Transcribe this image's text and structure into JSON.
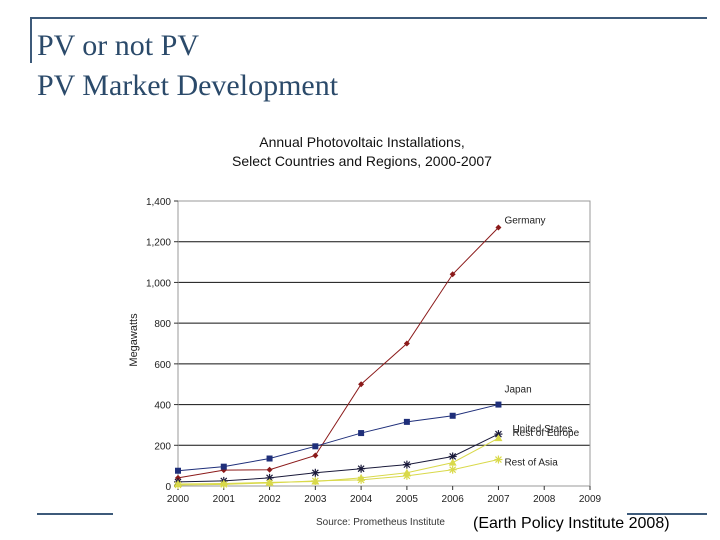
{
  "slide": {
    "title_line1": "PV or not PV",
    "title_line2": "PV Market Development",
    "citation": "(Earth Policy Institute 2008)",
    "accent_color": "#3d5a7a"
  },
  "chart_data": {
    "type": "line",
    "title": "Annual Photovoltaic Installations,",
    "subtitle": "Select Countries and Regions, 2000-2007",
    "ylabel": "Megawatts",
    "xlabel": "",
    "source": "Source: Prometheus Institute",
    "x": [
      2000,
      2001,
      2002,
      2003,
      2004,
      2005,
      2006,
      2007
    ],
    "x_ticks": [
      "2000",
      "2001",
      "2002",
      "2003",
      "2004",
      "2005",
      "2006",
      "2007",
      "2008",
      "2009"
    ],
    "xlim": [
      2000,
      2009
    ],
    "y_ticks": [
      "0",
      "200",
      "400",
      "600",
      "800",
      "1,000",
      "1,200",
      "1,400"
    ],
    "ylim": [
      0,
      1400
    ],
    "grid": "horizontal",
    "series": [
      {
        "name": "Germany",
        "color": "#8b1a1a",
        "marker": "diamond",
        "values": [
          40,
          78,
          80,
          150,
          500,
          700,
          1040,
          1270
        ]
      },
      {
        "name": "Japan",
        "color": "#1f2f7a",
        "marker": "square",
        "values": [
          75,
          95,
          135,
          195,
          260,
          315,
          345,
          400
        ]
      },
      {
        "name": "United States",
        "color": "#1a1a3a",
        "marker": "star",
        "values": [
          20,
          25,
          40,
          65,
          85,
          105,
          145,
          255
        ]
      },
      {
        "name": "Rest of Europe",
        "color": "#d9d94a",
        "marker": "triangle",
        "values": [
          10,
          12,
          18,
          22,
          40,
          65,
          115,
          235
        ]
      },
      {
        "name": "Rest of Asia",
        "color": "#d9d94a",
        "marker": "star",
        "values": [
          5,
          8,
          15,
          25,
          30,
          50,
          80,
          130
        ]
      }
    ]
  }
}
